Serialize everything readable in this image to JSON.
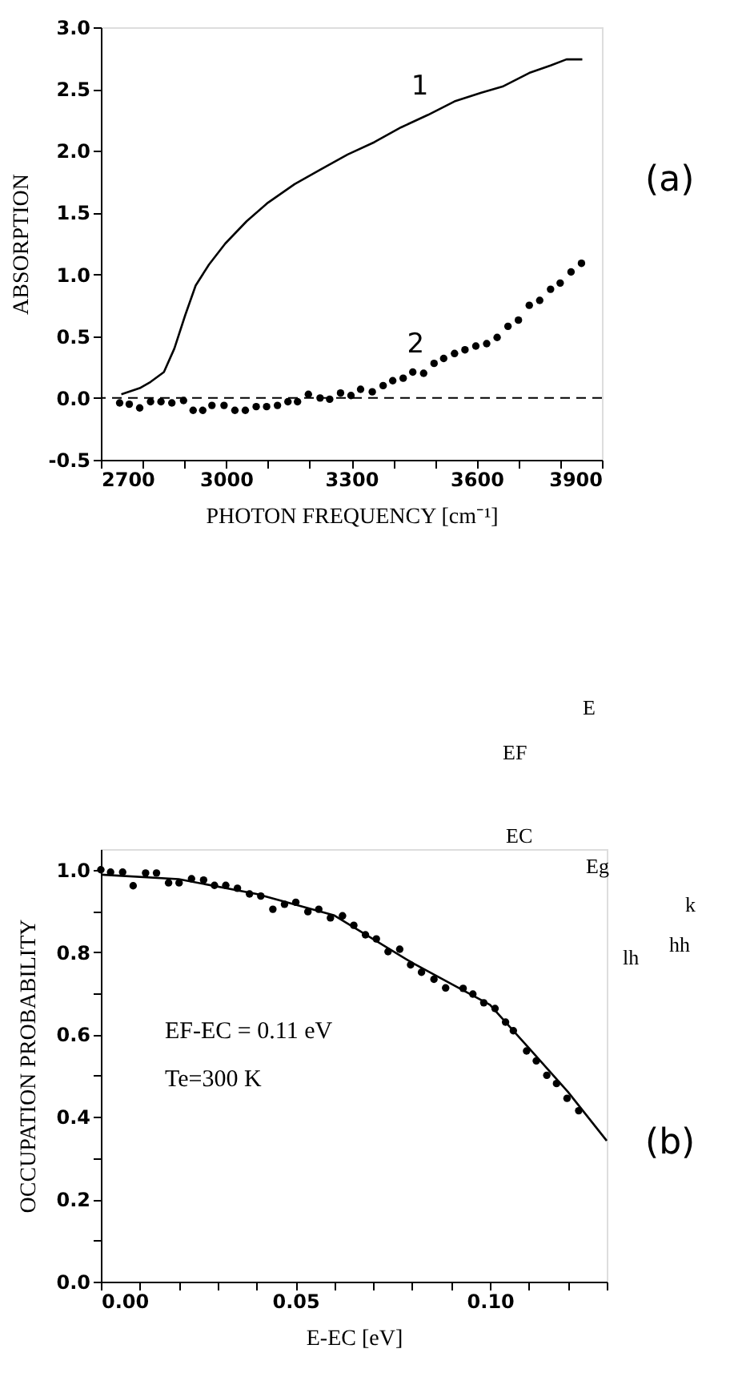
{
  "chart_data": [
    {
      "type": "line",
      "xlabel": "PHOTON FREQUENCY [cm⁻¹]",
      "ylabel": "ABSORPTION",
      "xlim": [
        2700,
        3900
      ],
      "ylim": [
        -0.5,
        3.0
      ],
      "xticks": [
        2700,
        {
          "value": 2800,
          "label": null
        },
        3000,
        {
          "value": 2900,
          "label": null
        },
        {
          "value": 3100,
          "label": null
        },
        {
          "value": 3200,
          "label": null
        },
        3300,
        {
          "value": 3400,
          "label": null
        },
        {
          "value": 3500,
          "label": null
        },
        3600,
        {
          "value": 3700,
          "label": null
        },
        {
          "value": 3800,
          "label": null
        },
        3900
      ],
      "yticks": [
        {
          "value": -0.5,
          "label": "-0.5"
        },
        {
          "value": 0,
          "label": "0.0"
        },
        0.5,
        {
          "value": 1,
          "label": "1.0"
        },
        1.5,
        {
          "value": 2,
          "label": "2.0"
        },
        2.5,
        {
          "value": 3,
          "label": "3.0"
        }
      ],
      "grid": false,
      "series": [
        {
          "name": "1",
          "color": "#000000",
          "marker": "none",
          "line_style": "solid",
          "x": [
            2749,
            2793,
            2819,
            2851,
            2876,
            2902,
            2927,
            2959,
            2998,
            3049,
            3100,
            3164,
            3227,
            3291,
            3355,
            3419,
            3483,
            3547,
            3611,
            3662,
            3726,
            3777,
            3815,
            3853
          ],
          "values": [
            0.03,
            0.08,
            0.13,
            0.21,
            0.4,
            0.67,
            0.91,
            1.08,
            1.25,
            1.43,
            1.58,
            1.73,
            1.85,
            1.97,
            2.07,
            2.19,
            2.29,
            2.4,
            2.47,
            2.52,
            2.63,
            2.69,
            2.74,
            2.74
          ]
        },
        {
          "name": "2",
          "type": "scatter",
          "color": "#000000",
          "marker": "circle",
          "x": [
            2745,
            2768,
            2793,
            2819,
            2844,
            2870,
            2898,
            2921,
            2944,
            2966,
            2995,
            3021,
            3046,
            3072,
            3097,
            3123,
            3148,
            3171,
            3197,
            3225,
            3248,
            3274,
            3299,
            3322,
            3350,
            3376,
            3399,
            3424,
            3447,
            3473,
            3498,
            3521,
            3547,
            3572,
            3598,
            3624,
            3649,
            3675,
            3700,
            3726,
            3751,
            3777,
            3800,
            3826,
            3851
          ],
          "values": [
            -0.04,
            -0.05,
            -0.08,
            -0.03,
            -0.03,
            -0.04,
            -0.02,
            -0.1,
            -0.1,
            -0.06,
            -0.06,
            -0.1,
            -0.1,
            -0.07,
            -0.07,
            -0.06,
            -0.03,
            -0.03,
            0.03,
            0.0,
            -0.01,
            0.04,
            0.02,
            0.07,
            0.05,
            0.1,
            0.14,
            0.16,
            0.21,
            0.2,
            0.28,
            0.32,
            0.36,
            0.39,
            0.42,
            0.44,
            0.49,
            0.58,
            0.63,
            0.75,
            0.79,
            0.88,
            0.93,
            1.02,
            1.09
          ]
        }
      ],
      "ref_lines": [
        {
          "axis": "y",
          "value": 0,
          "label": null,
          "color": "#000000",
          "line_style": "dashed"
        }
      ],
      "annotations": [
        "(a)"
      ]
    },
    {
      "type": "scatter",
      "xlabel": "E-EC [eV]",
      "ylabel": "OCCUPATION PROBABILITY",
      "xlim": [
        0,
        0.13
      ],
      "ylim": [
        0,
        1.05
      ],
      "xticks": [
        {
          "value": 0,
          "label": "0.00"
        },
        {
          "value": 0.01,
          "label": null
        },
        {
          "value": 0.02,
          "label": null
        },
        {
          "value": 0.03,
          "label": null
        },
        {
          "value": 0.04,
          "label": null
        },
        0.05,
        {
          "value": 0.06,
          "label": null
        },
        {
          "value": 0.07,
          "label": null
        },
        {
          "value": 0.08,
          "label": null
        },
        {
          "value": 0.09,
          "label": null
        },
        {
          "value": 0.1,
          "label": "0.10"
        },
        {
          "value": 0.11,
          "label": null
        },
        {
          "value": 0.12,
          "label": null
        },
        {
          "value": 0.13,
          "label": null
        }
      ],
      "yticks": [
        {
          "value": 0,
          "label": "0.0"
        },
        {
          "value": 0.1,
          "label": null
        },
        0.2,
        {
          "value": 0.3,
          "label": null
        },
        0.4,
        {
          "value": 0.5,
          "label": null
        },
        0.6,
        {
          "value": 0.7,
          "label": null
        },
        0.8,
        {
          "value": 0.9,
          "label": null
        },
        {
          "value": 1,
          "label": "1.0"
        }
      ],
      "grid": false,
      "series": [
        {
          "color": "#000000",
          "marker": "circle",
          "x": [
            0,
            0.0025,
            0.0056,
            0.0083,
            0.0115,
            0.0143,
            0.0174,
            0.0201,
            0.0233,
            0.0264,
            0.0292,
            0.0321,
            0.0351,
            0.0382,
            0.0411,
            0.0442,
            0.0472,
            0.0501,
            0.0532,
            0.056,
            0.059,
            0.0621,
            0.065,
            0.068,
            0.0708,
            0.0738,
            0.0768,
            0.0796,
            0.0824,
            0.0856,
            0.0886,
            0.0931,
            0.0956,
            0.0984,
            0.1013,
            0.104,
            0.106,
            0.1094,
            0.1119,
            0.1146,
            0.1171,
            0.1198,
            0.1228
          ],
          "values": [
            1.0,
            0.994,
            0.994,
            0.961,
            0.992,
            0.992,
            0.968,
            0.968,
            0.978,
            0.975,
            0.962,
            0.962,
            0.955,
            0.941,
            0.936,
            0.904,
            0.916,
            0.921,
            0.898,
            0.904,
            0.883,
            0.888,
            0.865,
            0.842,
            0.832,
            0.801,
            0.807,
            0.769,
            0.751,
            0.734,
            0.713,
            0.712,
            0.698,
            0.677,
            0.663,
            0.63,
            0.609,
            0.56,
            0.536,
            0.501,
            0.481,
            0.445,
            0.415
          ]
        },
        {
          "type": "line",
          "color": "#000000",
          "marker": "none",
          "line_style": "solid",
          "x": [
            0,
            0.02,
            0.04,
            0.06,
            0.08,
            0.1,
            0.11,
            0.12,
            0.13
          ],
          "values": [
            0.988,
            0.977,
            0.941,
            0.889,
            0.774,
            0.672,
            0.567,
            0.461,
            0.342
          ]
        }
      ],
      "annotations": [
        "EF-EC = 0.11 eV",
        "Te=300 K",
        "(b)",
        "E",
        "EF",
        "EC",
        "Eg",
        "k",
        "lh",
        "hh"
      ]
    }
  ]
}
